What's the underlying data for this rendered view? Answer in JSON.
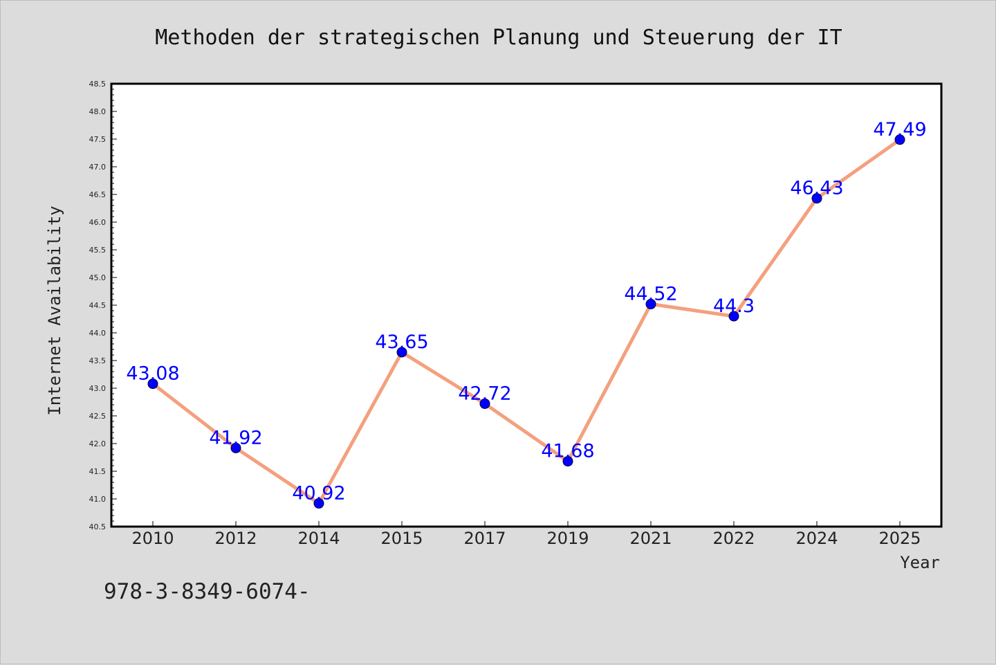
{
  "chart_data": {
    "type": "line",
    "title": "Methoden der strategischen Planung und Steuerung der IT",
    "xlabel": "Year",
    "ylabel": "Internet Availability",
    "categories": [
      "2010",
      "2012",
      "2014",
      "2015",
      "2017",
      "2019",
      "2021",
      "2022",
      "2024",
      "2025"
    ],
    "series": [
      {
        "values": [
          43.08,
          41.92,
          40.92,
          43.65,
          42.72,
          41.68,
          44.52,
          44.3,
          46.43,
          47.49
        ],
        "labels": [
          "43.08",
          "41.92",
          "40.92",
          "43.65",
          "42.72",
          "41.68",
          "44.52",
          "44.3",
          "46.43",
          "47.49"
        ],
        "line_color": "#f4a07e",
        "marker_color": "#0000ff"
      }
    ],
    "ylim": [
      40.5,
      48.5
    ],
    "yticks": [
      "40.5",
      "41.0",
      "41.5",
      "42.0",
      "42.5",
      "43.0",
      "43.5",
      "44.0",
      "44.5",
      "45.0",
      "45.5",
      "46.0",
      "46.5",
      "47.0",
      "47.5",
      "48.0",
      "48.5"
    ],
    "grid": false,
    "legend": "none",
    "data_label_color": "#0000ff",
    "background_color": "#dcdcdc",
    "plot_background": "#ffffff"
  },
  "footnote": "978-3-8349-6074-"
}
